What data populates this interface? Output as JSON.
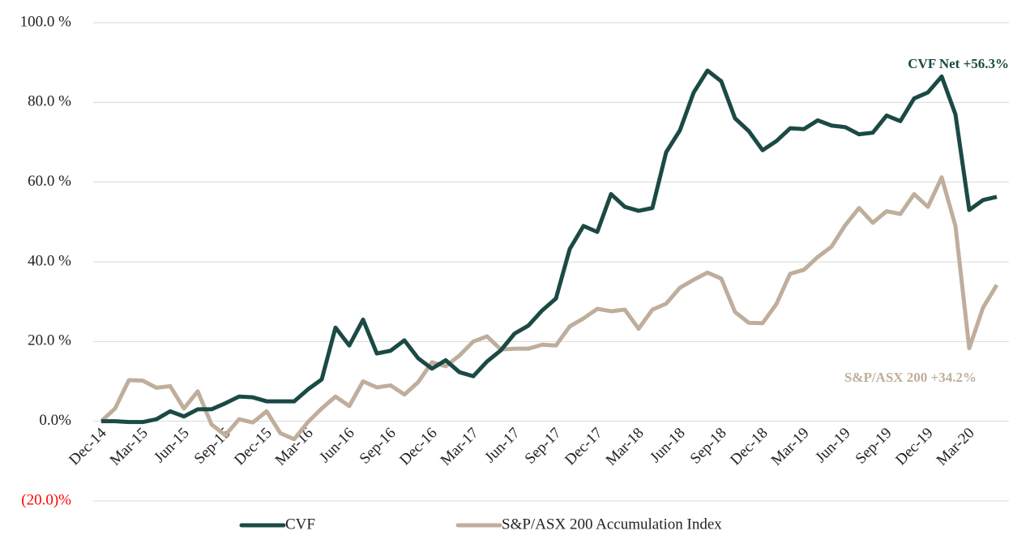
{
  "chart_data": {
    "type": "line",
    "categories": [
      "Dec-14",
      null,
      null,
      "Mar-15",
      null,
      null,
      "Jun-15",
      null,
      null,
      "Sep-15",
      null,
      null,
      "Dec-15",
      null,
      null,
      "Mar-16",
      null,
      null,
      "Jun-16",
      null,
      null,
      "Sep-16",
      null,
      null,
      "Dec-16",
      null,
      null,
      "Mar-17",
      null,
      null,
      "Jun-17",
      null,
      null,
      "Sep-17",
      null,
      null,
      "Dec-17",
      null,
      null,
      "Mar-18",
      null,
      null,
      "Jun-18",
      null,
      null,
      "Sep-18",
      null,
      null,
      "Dec-18",
      null,
      null,
      "Mar-19",
      null,
      null,
      "Jun-19",
      null,
      null,
      "Sep-19",
      null,
      null,
      "Dec-19",
      null,
      null,
      "Mar-20",
      null,
      null
    ],
    "series": [
      {
        "name": "CVF",
        "color": "#1b4a45",
        "values": [
          0,
          0,
          -0.2,
          -0.2,
          0.5,
          2.5,
          1.2,
          3,
          3,
          4.5,
          6.2,
          6,
          5,
          5,
          5,
          8,
          10.5,
          23.5,
          19,
          25.5,
          17,
          17.7,
          20.3,
          15.8,
          13.2,
          15.3,
          12.3,
          11.3,
          15,
          17.8,
          22,
          24,
          27.8,
          30.8,
          43.2,
          49,
          47.5,
          57,
          53.8,
          52.8,
          53.5,
          67.5,
          73,
          82.5,
          88,
          85.3,
          76,
          72.8,
          68,
          70.3,
          73.5,
          73.3,
          75.5,
          74.2,
          73.8,
          72,
          72.4,
          76.7,
          75.3,
          81,
          82.5,
          86.5,
          77,
          53,
          55.5,
          56.3
        ]
      },
      {
        "name": "S&P/ASX 200 Accumulation Index",
        "color": "#bfae9c",
        "values": [
          0,
          3.2,
          10.3,
          10.2,
          8.4,
          8.8,
          3.2,
          7.5,
          -0.8,
          -3.5,
          0.5,
          -0.3,
          2.5,
          -3,
          -4.5,
          -0.2,
          3.2,
          6.2,
          3.8,
          10,
          8.5,
          9,
          6.7,
          9.8,
          14.8,
          13.8,
          16.5,
          20,
          21.3,
          18,
          18.2,
          18.2,
          19.2,
          19,
          23.8,
          25.8,
          28.2,
          27.6,
          28,
          23.2,
          28,
          29.5,
          33.5,
          35.5,
          37.3,
          35.8,
          27.4,
          24.7,
          24.6,
          29.4,
          37,
          38,
          41.2,
          43.8,
          49.2,
          53.5,
          49.8,
          52.7,
          52,
          57,
          53.8,
          61.2,
          49,
          18.3,
          28.5,
          34.2
        ]
      }
    ],
    "ylim": [
      -20,
      100
    ],
    "yticks": [
      {
        "value": -20,
        "label": "(20.0)%",
        "color": "#ff0000"
      },
      {
        "value": 0,
        "label": "0.0%"
      },
      {
        "value": 20,
        "label": "20.0 %"
      },
      {
        "value": 40,
        "label": "40.0 %"
      },
      {
        "value": 60,
        "label": "60.0 %"
      },
      {
        "value": 80,
        "label": "80.0 %"
      },
      {
        "value": 100,
        "label": "100.0 %"
      }
    ],
    "grid": true,
    "legend": "bottom",
    "annotations": [
      {
        "text": "CVF Net +56.3%",
        "color": "#1b4a45"
      },
      {
        "text": "S&P/ASX 200 +34.2%",
        "color": "#bfae9c"
      }
    ]
  }
}
